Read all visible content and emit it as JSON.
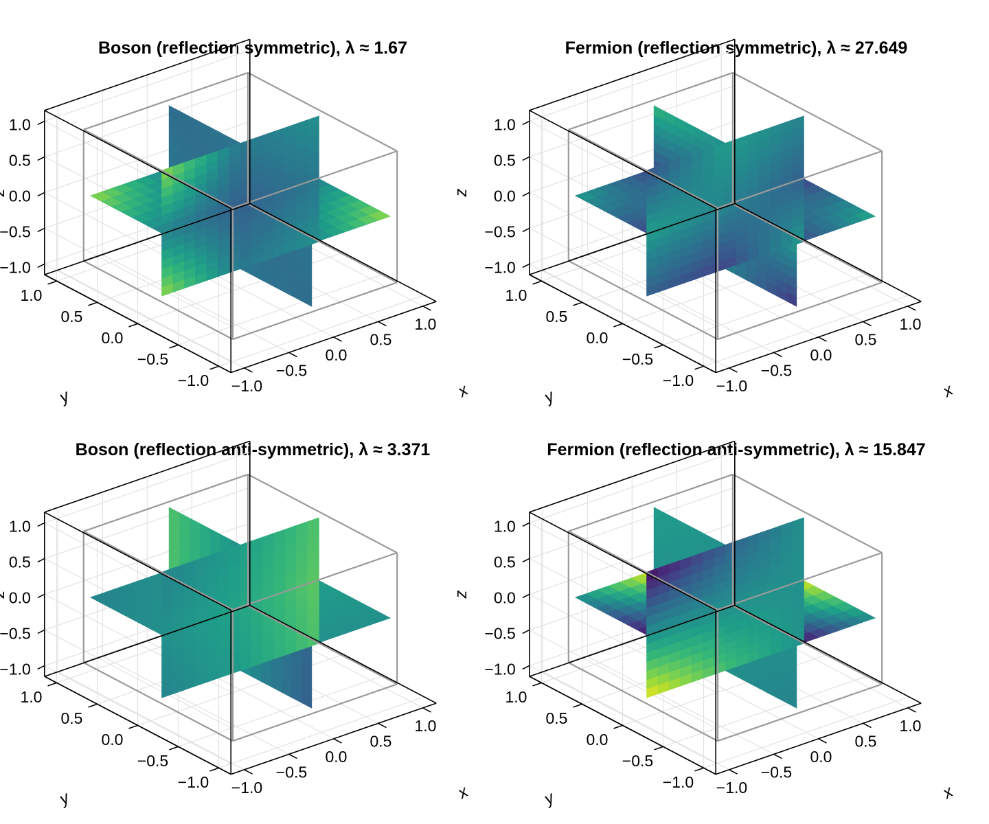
{
  "chart_data": [
    {
      "type": "heatmap",
      "title": "Boson (reflection symmetric), λ ≈ 1.67",
      "xlabel": "x",
      "ylabel": "y",
      "zlabel": "z",
      "xlim": [
        -1.0,
        1.0
      ],
      "ylim": [
        -1.0,
        1.0
      ],
      "zlim": [
        -1.0,
        1.0
      ],
      "xticks": [
        "−1.0",
        "−0.5",
        "0.0",
        "0.5",
        "1.0"
      ],
      "yticks": [
        "−1.0",
        "−0.5",
        "0.0",
        "0.5",
        "1.0"
      ],
      "zticks": [
        "−1.0",
        "−0.5",
        "0.0",
        "0.5",
        "1.0"
      ],
      "colormap": "viridis",
      "slices": {
        "xy": [
          [
            0.85,
            0.45,
            0.85
          ],
          [
            0.45,
            0.35,
            0.45
          ],
          [
            0.85,
            0.45,
            0.85
          ]
        ],
        "xz": [
          [
            0.85,
            0.45,
            0.85
          ],
          [
            0.4,
            0.3,
            0.4
          ],
          [
            0.5,
            0.4,
            0.5
          ]
        ],
        "yz": [
          [
            0.35,
            0.4,
            0.45
          ],
          [
            0.4,
            0.3,
            0.4
          ],
          [
            0.45,
            0.4,
            0.35
          ]
        ]
      }
    },
    {
      "type": "heatmap",
      "title": "Fermion (reflection symmetric), λ ≈ 27.649",
      "xlabel": "x",
      "ylabel": "y",
      "zlabel": "z",
      "xlim": [
        -1.0,
        1.0
      ],
      "ylim": [
        -1.0,
        1.0
      ],
      "zlim": [
        -1.0,
        1.0
      ],
      "xticks": [
        "−1.0",
        "−0.5",
        "0.0",
        "0.5",
        "1.0"
      ],
      "yticks": [
        "−1.0",
        "−0.5",
        "0.0",
        "0.5",
        "1.0"
      ],
      "zticks": [
        "−1.0",
        "−0.5",
        "0.0",
        "0.5",
        "1.0"
      ],
      "colormap": "viridis",
      "slices": {
        "xy": [
          [
            0.35,
            0.2,
            0.55
          ],
          [
            0.2,
            0.45,
            0.2
          ],
          [
            0.6,
            0.2,
            0.35
          ]
        ],
        "xz": [
          [
            0.3,
            0.55,
            0.25
          ],
          [
            0.2,
            0.45,
            0.55
          ],
          [
            0.55,
            0.3,
            0.45
          ]
        ],
        "yz": [
          [
            0.15,
            0.55,
            0.7
          ],
          [
            0.45,
            0.3,
            0.5
          ],
          [
            0.7,
            0.25,
            0.65
          ]
        ]
      }
    },
    {
      "type": "heatmap",
      "title": "Boson (reflection anti-symmetric), λ ≈ 3.371",
      "xlabel": "x",
      "ylabel": "y",
      "zlabel": "z",
      "xlim": [
        -1.0,
        1.0
      ],
      "ylim": [
        -1.0,
        1.0
      ],
      "zlim": [
        -1.0,
        1.0
      ],
      "xticks": [
        "−1.0",
        "−0.5",
        "0.0",
        "0.5",
        "1.0"
      ],
      "yticks": [
        "−1.0",
        "−0.5",
        "0.0",
        "0.5",
        "1.0"
      ],
      "zticks": [
        "−1.0",
        "−0.5",
        "0.0",
        "0.5",
        "1.0"
      ],
      "colormap": "viridis",
      "slices": {
        "xy": [
          [
            0.45,
            0.5,
            0.45
          ],
          [
            0.5,
            0.55,
            0.5
          ],
          [
            0.5,
            0.55,
            0.5
          ]
        ],
        "xz": [
          [
            0.45,
            0.5,
            0.45
          ],
          [
            0.55,
            0.58,
            0.55
          ],
          [
            0.72,
            0.75,
            0.72
          ]
        ],
        "yz": [
          [
            0.3,
            0.32,
            0.3
          ],
          [
            0.5,
            0.5,
            0.5
          ],
          [
            0.72,
            0.72,
            0.72
          ]
        ]
      }
    },
    {
      "type": "heatmap",
      "title": "Fermion (reflection anti-symmetric), λ ≈ 15.847",
      "xlabel": "x",
      "ylabel": "y",
      "zlabel": "z",
      "xlim": [
        -1.0,
        1.0
      ],
      "ylim": [
        -1.0,
        1.0
      ],
      "zlim": [
        -1.0,
        1.0
      ],
      "xticks": [
        "−1.0",
        "−0.5",
        "0.0",
        "0.5",
        "1.0"
      ],
      "yticks": [
        "−1.0",
        "−0.5",
        "0.0",
        "0.5",
        "1.0"
      ],
      "zticks": [
        "−1.0",
        "−0.5",
        "0.0",
        "0.5",
        "1.0"
      ],
      "colormap": "viridis",
      "slices": {
        "xy": [
          [
            0.5,
            0.05,
            0.5
          ],
          [
            0.0,
            0.5,
            1.0
          ],
          [
            0.5,
            0.95,
            0.5
          ]
        ],
        "xz": [
          [
            0.98,
            0.5,
            0.02
          ],
          [
            0.7,
            0.5,
            0.3
          ],
          [
            0.5,
            0.5,
            0.5
          ]
        ],
        "yz": [
          [
            0.45,
            0.5,
            0.55
          ],
          [
            0.5,
            0.5,
            0.5
          ],
          [
            0.45,
            0.5,
            0.55
          ]
        ]
      }
    }
  ]
}
